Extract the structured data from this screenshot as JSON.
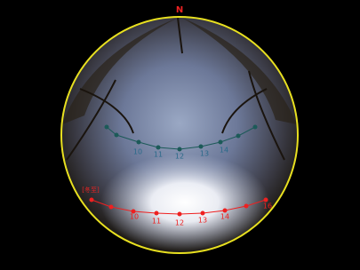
{
  "compass": {
    "north": "N"
  },
  "upper_path": {
    "hour_labels": [
      "10",
      "11",
      "12",
      "13",
      "14"
    ]
  },
  "winter_path": {
    "label": "[冬至]",
    "hour_labels": [
      "10",
      "11",
      "12",
      "13",
      "14",
      "16"
    ]
  }
}
